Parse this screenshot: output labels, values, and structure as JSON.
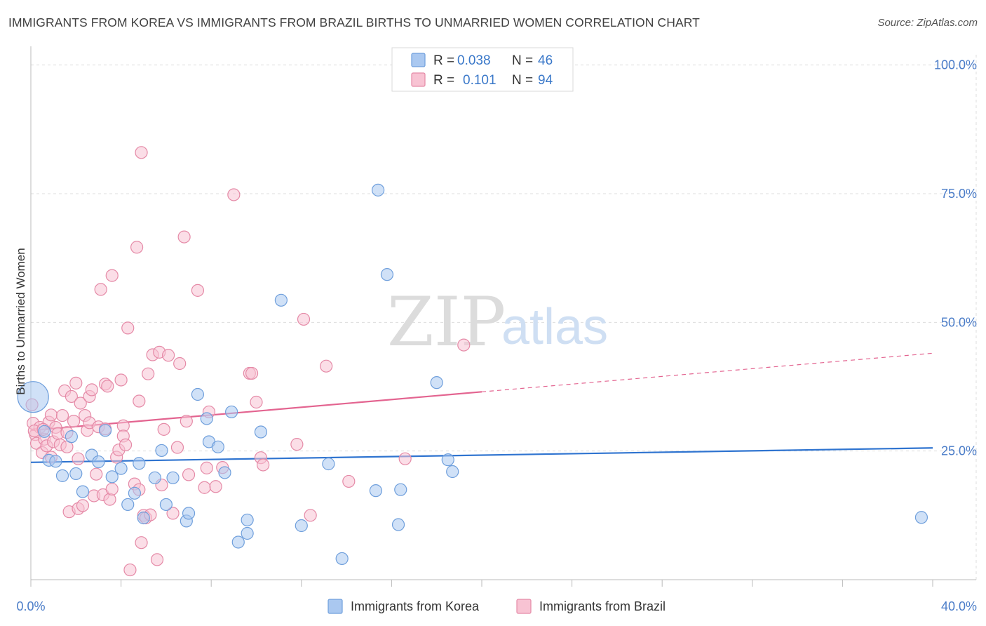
{
  "title": "IMMIGRANTS FROM KOREA VS IMMIGRANTS FROM BRAZIL BIRTHS TO UNMARRIED WOMEN CORRELATION CHART",
  "source": "Source: ZipAtlas.com",
  "watermark": {
    "zip": "ZIP",
    "atlas": "atlas"
  },
  "legend": {
    "r_label": "R =",
    "n_label": "N =",
    "rows": [
      {
        "r": "0.038",
        "n": "46",
        "color": "#aac8f0",
        "border": "#6f9fdc"
      },
      {
        "r": "0.101",
        "n": "94",
        "color": "#f8c3d3",
        "border": "#e58aa7"
      }
    ]
  },
  "colors": {
    "korea_fill": "#aac8f0",
    "korea_stroke": "#6f9fdc",
    "korea_line": "#2f74d0",
    "brazil_fill": "#f8c3d3",
    "brazil_stroke": "#e58aa7",
    "brazil_line": "#e36490",
    "axis_text": "#4a7cc8",
    "grid": "#dddddd"
  },
  "chart_data": {
    "type": "scatter",
    "title": "IMMIGRANTS FROM KOREA VS IMMIGRANTS FROM BRAZIL BIRTHS TO UNMARRIED WOMEN CORRELATION CHART",
    "xlabel": "",
    "ylabel": "Births to Unmarried Women",
    "xlim": [
      0,
      40
    ],
    "ylim": [
      0,
      102
    ],
    "x_ticks": [
      "0.0%",
      "40.0%"
    ],
    "y_ticks": [
      {
        "value": 25,
        "label": "25.0%"
      },
      {
        "value": 50,
        "label": "50.0%"
      },
      {
        "value": 75,
        "label": "75.0%"
      },
      {
        "value": 100,
        "label": "100.0%"
      }
    ],
    "grid": true,
    "legend_position": "top-center",
    "series": [
      {
        "name": "Immigrants from Korea",
        "R": 0.038,
        "N": 46,
        "trend": {
          "x": [
            0,
            40
          ],
          "y": [
            22.8,
            25.6
          ],
          "dashed_from": null
        },
        "points": [
          {
            "x": 0.1,
            "y": 35.5,
            "big": true
          },
          {
            "x": 0.6,
            "y": 28.8
          },
          {
            "x": 0.8,
            "y": 23.2
          },
          {
            "x": 1.1,
            "y": 23.0
          },
          {
            "x": 1.4,
            "y": 20.2
          },
          {
            "x": 1.8,
            "y": 27.8
          },
          {
            "x": 2.0,
            "y": 20.6
          },
          {
            "x": 2.3,
            "y": 17.1
          },
          {
            "x": 2.7,
            "y": 24.2
          },
          {
            "x": 3.0,
            "y": 22.9
          },
          {
            "x": 3.3,
            "y": 29.0
          },
          {
            "x": 3.6,
            "y": 20.0
          },
          {
            "x": 4.0,
            "y": 21.6
          },
          {
            "x": 4.3,
            "y": 14.6
          },
          {
            "x": 4.6,
            "y": 16.8
          },
          {
            "x": 4.8,
            "y": 22.6
          },
          {
            "x": 5.0,
            "y": 12.0
          },
          {
            "x": 5.5,
            "y": 19.8
          },
          {
            "x": 5.8,
            "y": 25.1
          },
          {
            "x": 6.0,
            "y": 14.6
          },
          {
            "x": 6.3,
            "y": 19.8
          },
          {
            "x": 6.9,
            "y": 11.4
          },
          {
            "x": 7.0,
            "y": 12.9
          },
          {
            "x": 7.4,
            "y": 36.0
          },
          {
            "x": 7.8,
            "y": 31.3
          },
          {
            "x": 7.9,
            "y": 26.8
          },
          {
            "x": 8.3,
            "y": 25.8
          },
          {
            "x": 8.6,
            "y": 20.8
          },
          {
            "x": 8.9,
            "y": 32.6
          },
          {
            "x": 9.2,
            "y": 7.3
          },
          {
            "x": 9.6,
            "y": 11.6
          },
          {
            "x": 9.6,
            "y": 9.0
          },
          {
            "x": 10.2,
            "y": 28.7
          },
          {
            "x": 11.1,
            "y": 54.3
          },
          {
            "x": 12.0,
            "y": 10.5
          },
          {
            "x": 13.2,
            "y": 22.5
          },
          {
            "x": 13.8,
            "y": 4.1
          },
          {
            "x": 15.3,
            "y": 17.3
          },
          {
            "x": 15.4,
            "y": 75.7
          },
          {
            "x": 15.8,
            "y": 59.3
          },
          {
            "x": 16.3,
            "y": 10.7
          },
          {
            "x": 16.4,
            "y": 17.5
          },
          {
            "x": 18.0,
            "y": 38.3
          },
          {
            "x": 18.5,
            "y": 23.3
          },
          {
            "x": 18.7,
            "y": 21.0
          },
          {
            "x": 39.5,
            "y": 12.1
          }
        ]
      },
      {
        "name": "Immigrants from Brazil",
        "R": 0.101,
        "N": 94,
        "trend": {
          "x": [
            0,
            40
          ],
          "y": [
            29.0,
            44.0
          ],
          "dashed_from": 20
        },
        "points": [
          {
            "x": 0.05,
            "y": 34.0
          },
          {
            "x": 0.1,
            "y": 30.4
          },
          {
            "x": 0.2,
            "y": 28.2
          },
          {
            "x": 0.25,
            "y": 26.5
          },
          {
            "x": 0.4,
            "y": 29.6
          },
          {
            "x": 0.5,
            "y": 24.7
          },
          {
            "x": 0.6,
            "y": 27.3
          },
          {
            "x": 0.7,
            "y": 26.0
          },
          {
            "x": 0.8,
            "y": 30.6
          },
          {
            "x": 0.9,
            "y": 23.8
          },
          {
            "x": 0.9,
            "y": 32.0
          },
          {
            "x": 1.0,
            "y": 26.8
          },
          {
            "x": 1.1,
            "y": 29.6
          },
          {
            "x": 1.2,
            "y": 28.4
          },
          {
            "x": 1.3,
            "y": 26.2
          },
          {
            "x": 1.4,
            "y": 31.9
          },
          {
            "x": 1.5,
            "y": 36.7
          },
          {
            "x": 1.6,
            "y": 28.6
          },
          {
            "x": 1.6,
            "y": 25.8
          },
          {
            "x": 1.7,
            "y": 13.2
          },
          {
            "x": 1.8,
            "y": 35.6
          },
          {
            "x": 1.9,
            "y": 30.8
          },
          {
            "x": 2.0,
            "y": 38.2
          },
          {
            "x": 2.1,
            "y": 13.8
          },
          {
            "x": 2.1,
            "y": 23.5
          },
          {
            "x": 2.2,
            "y": 34.3
          },
          {
            "x": 2.3,
            "y": 14.4
          },
          {
            "x": 2.4,
            "y": 31.9
          },
          {
            "x": 2.5,
            "y": 29.0
          },
          {
            "x": 2.6,
            "y": 35.6
          },
          {
            "x": 2.6,
            "y": 30.5
          },
          {
            "x": 2.7,
            "y": 36.9
          },
          {
            "x": 2.8,
            "y": 16.3
          },
          {
            "x": 2.9,
            "y": 20.5
          },
          {
            "x": 3.0,
            "y": 29.7
          },
          {
            "x": 3.1,
            "y": 56.4
          },
          {
            "x": 3.2,
            "y": 16.5
          },
          {
            "x": 3.3,
            "y": 38.0
          },
          {
            "x": 3.3,
            "y": 29.3
          },
          {
            "x": 3.4,
            "y": 37.6
          },
          {
            "x": 3.5,
            "y": 15.6
          },
          {
            "x": 3.6,
            "y": 59.1
          },
          {
            "x": 3.6,
            "y": 17.6
          },
          {
            "x": 3.8,
            "y": 23.8
          },
          {
            "x": 3.9,
            "y": 25.2
          },
          {
            "x": 4.0,
            "y": 38.8
          },
          {
            "x": 4.1,
            "y": 29.9
          },
          {
            "x": 4.1,
            "y": 27.9
          },
          {
            "x": 4.2,
            "y": 26.2
          },
          {
            "x": 4.3,
            "y": 48.9
          },
          {
            "x": 4.4,
            "y": 1.9
          },
          {
            "x": 4.6,
            "y": 18.6
          },
          {
            "x": 4.7,
            "y": 64.6
          },
          {
            "x": 4.8,
            "y": 34.7
          },
          {
            "x": 4.8,
            "y": 17.5
          },
          {
            "x": 4.9,
            "y": 83.0
          },
          {
            "x": 4.9,
            "y": 7.2
          },
          {
            "x": 5.0,
            "y": 12.5
          },
          {
            "x": 5.1,
            "y": 12.0
          },
          {
            "x": 5.2,
            "y": 40.0
          },
          {
            "x": 5.3,
            "y": 12.6
          },
          {
            "x": 5.4,
            "y": 43.7
          },
          {
            "x": 5.6,
            "y": 3.9
          },
          {
            "x": 5.7,
            "y": 44.2
          },
          {
            "x": 5.8,
            "y": 18.4
          },
          {
            "x": 5.9,
            "y": 29.2
          },
          {
            "x": 6.1,
            "y": 43.6
          },
          {
            "x": 6.3,
            "y": 12.9
          },
          {
            "x": 6.5,
            "y": 25.7
          },
          {
            "x": 6.6,
            "y": 42.0
          },
          {
            "x": 6.8,
            "y": 66.6
          },
          {
            "x": 6.9,
            "y": 30.8
          },
          {
            "x": 7.0,
            "y": 20.4
          },
          {
            "x": 7.4,
            "y": 56.2
          },
          {
            "x": 7.7,
            "y": 17.9
          },
          {
            "x": 7.8,
            "y": 21.7
          },
          {
            "x": 7.9,
            "y": 32.6
          },
          {
            "x": 8.2,
            "y": 18.1
          },
          {
            "x": 8.5,
            "y": 21.8
          },
          {
            "x": 9.0,
            "y": 74.8
          },
          {
            "x": 9.7,
            "y": 40.1
          },
          {
            "x": 9.8,
            "y": 40.1
          },
          {
            "x": 10.0,
            "y": 34.5
          },
          {
            "x": 10.2,
            "y": 23.7
          },
          {
            "x": 10.3,
            "y": 22.3
          },
          {
            "x": 11.8,
            "y": 26.3
          },
          {
            "x": 12.1,
            "y": 50.6
          },
          {
            "x": 12.4,
            "y": 12.5
          },
          {
            "x": 13.1,
            "y": 41.5
          },
          {
            "x": 14.1,
            "y": 19.1
          },
          {
            "x": 16.6,
            "y": 23.5
          },
          {
            "x": 19.2,
            "y": 45.6
          },
          {
            "x": 0.15,
            "y": 28.9
          },
          {
            "x": 0.55,
            "y": 29.2
          }
        ]
      }
    ]
  },
  "bottom_legend": [
    {
      "label": "Immigrants from Korea"
    },
    {
      "label": "Immigrants from Brazil"
    }
  ]
}
